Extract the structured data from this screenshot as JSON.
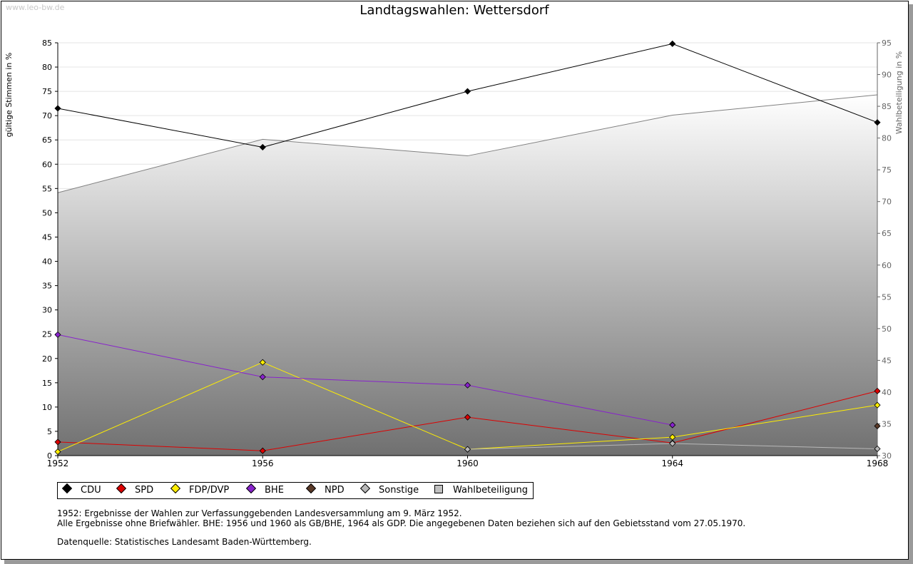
{
  "watermark": "www.leo-bw.de",
  "notes": {
    "line1": "1952: Ergebnisse der Wahlen zur Verfassunggebenden Landesversammlung am 9. März 1952.",
    "line2": "Alle Ergebnisse ohne Briefwähler. BHE: 1956 und 1960 als GB/BHE, 1964 als GDP. Die angegebenen Daten beziehen sich auf den Gebietsstand vom 27.05.1970.",
    "source": "Datenquelle: Statistisches Landesamt Baden-Württemberg."
  },
  "chart_data": {
    "type": "line",
    "title": "Landtagswahlen: Wettersdorf",
    "ylabel": "gültige Stimmen in %",
    "y2label": "Wahlbeteiligung in %",
    "xlabel": "",
    "x": [
      1952,
      1956,
      1960,
      1964,
      1968
    ],
    "x_ticks": [
      "1952",
      "1956",
      "1960",
      "1964",
      "1968"
    ],
    "ylim": [
      0,
      85
    ],
    "y_ticks": [
      0,
      5,
      10,
      15,
      20,
      25,
      30,
      35,
      40,
      45,
      50,
      55,
      60,
      65,
      70,
      75,
      80,
      85
    ],
    "y2lim": [
      30,
      95
    ],
    "y2_ticks": [
      30,
      35,
      40,
      45,
      50,
      55,
      60,
      65,
      70,
      75,
      80,
      85,
      90,
      95
    ],
    "grid": true,
    "legend_position": "bottom",
    "series": [
      {
        "name": "CDU",
        "color": "#000000",
        "values": [
          71.5,
          63.5,
          75.0,
          84.8,
          68.6
        ]
      },
      {
        "name": "SPD",
        "color": "#dd0000",
        "values": [
          2.8,
          1.0,
          7.9,
          2.6,
          13.3
        ]
      },
      {
        "name": "FDP/DVP",
        "color": "#ffee00",
        "values": [
          0.8,
          19.2,
          1.3,
          3.8,
          10.4
        ]
      },
      {
        "name": "BHE",
        "color": "#8822cc",
        "values": [
          24.9,
          16.2,
          14.5,
          6.3,
          null
        ]
      },
      {
        "name": "NPD",
        "color": "#5a3a28",
        "values": [
          null,
          null,
          null,
          null,
          6.1
        ]
      },
      {
        "name": "Sonstige",
        "color": "#b8b8b8",
        "values": [
          null,
          null,
          1.3,
          2.5,
          1.4
        ]
      }
    ],
    "area_series": {
      "name": "Wahlbeteiligung",
      "axis": "right",
      "color": "#808080",
      "values": [
        71.4,
        79.8,
        77.2,
        83.6,
        86.8
      ]
    }
  }
}
